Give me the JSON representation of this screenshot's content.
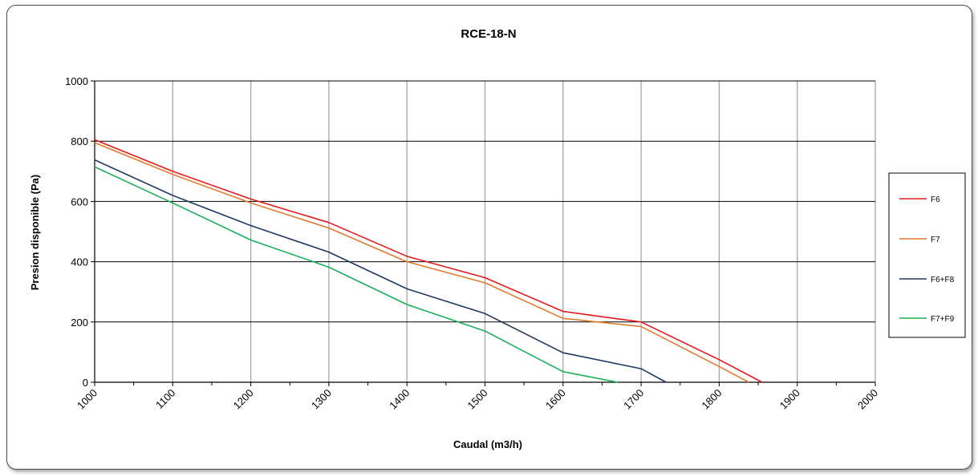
{
  "chart_data": {
    "type": "line",
    "title": "RCE-18-N",
    "xlabel": "Caudal (m3/h)",
    "ylabel": "Presion disponible  (Pa)",
    "xlim": [
      1000,
      2000
    ],
    "ylim": [
      0,
      1000
    ],
    "x_ticks": [
      "1000",
      "1100",
      "1200",
      "1300",
      "1400",
      "1500",
      "1600",
      "1700",
      "1800",
      "1900",
      "2000"
    ],
    "y_ticks": [
      "0",
      "200",
      "400",
      "600",
      "800",
      "1000"
    ],
    "grid": true,
    "legend_position": "right",
    "series": [
      {
        "name": "F6",
        "color": "#e31a1c",
        "points": [
          [
            1000,
            805
          ],
          [
            1100,
            700
          ],
          [
            1200,
            608
          ],
          [
            1300,
            530
          ],
          [
            1400,
            418
          ],
          [
            1500,
            347
          ],
          [
            1600,
            235
          ],
          [
            1700,
            200
          ],
          [
            1800,
            75
          ],
          [
            1855,
            0
          ]
        ]
      },
      {
        "name": "F7",
        "color": "#e07a2e",
        "points": [
          [
            1000,
            795
          ],
          [
            1100,
            690
          ],
          [
            1200,
            595
          ],
          [
            1300,
            512
          ],
          [
            1400,
            400
          ],
          [
            1500,
            330
          ],
          [
            1600,
            212
          ],
          [
            1700,
            185
          ],
          [
            1800,
            52
          ],
          [
            1838,
            0
          ]
        ]
      },
      {
        "name": "F6+F8",
        "color": "#1f3864",
        "points": [
          [
            1000,
            738
          ],
          [
            1100,
            620
          ],
          [
            1200,
            520
          ],
          [
            1300,
            432
          ],
          [
            1400,
            310
          ],
          [
            1500,
            228
          ],
          [
            1600,
            98
          ],
          [
            1700,
            45
          ],
          [
            1732,
            0
          ]
        ]
      },
      {
        "name": "F7+F9",
        "color": "#1ab05a",
        "points": [
          [
            1000,
            715
          ],
          [
            1100,
            595
          ],
          [
            1200,
            472
          ],
          [
            1300,
            382
          ],
          [
            1400,
            258
          ],
          [
            1500,
            170
          ],
          [
            1600,
            35
          ],
          [
            1670,
            0
          ]
        ]
      }
    ]
  }
}
